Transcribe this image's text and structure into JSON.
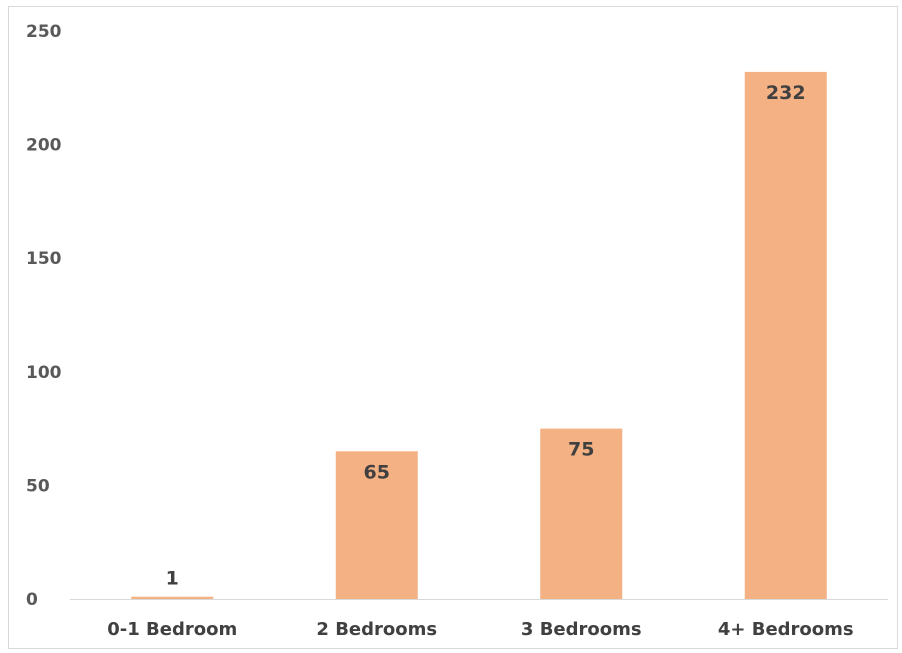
{
  "chart_data": {
    "type": "bar",
    "categories": [
      "0-1 Bedroom",
      "2 Bedrooms",
      "3 Bedrooms",
      "4+ Bedrooms"
    ],
    "values": [
      1,
      65,
      75,
      232
    ],
    "data_labels": [
      "1",
      "65",
      "75",
      "232"
    ],
    "yticks": [
      "0",
      "50",
      "100",
      "150",
      "200",
      "250"
    ],
    "ylim": [
      0,
      250
    ],
    "title": "",
    "xlabel": "",
    "ylabel": "",
    "grid": false,
    "legend": "none",
    "bar_color": "#F4B183"
  }
}
